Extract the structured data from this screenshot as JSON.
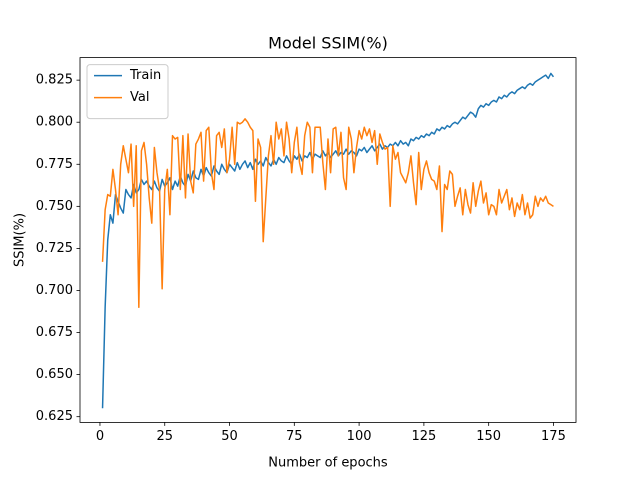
{
  "chart_data": {
    "type": "line",
    "title": "Model SSIM(%)",
    "x_label": "Number of epochs",
    "y_label": "SSIM(%)",
    "x": [
      1,
      2,
      3,
      4,
      5,
      6,
      7,
      8,
      9,
      10,
      11,
      12,
      13,
      14,
      15,
      16,
      17,
      18,
      19,
      20,
      21,
      22,
      23,
      24,
      25,
      26,
      27,
      28,
      29,
      30,
      31,
      32,
      33,
      34,
      35,
      36,
      37,
      38,
      39,
      40,
      41,
      42,
      43,
      44,
      45,
      46,
      47,
      48,
      49,
      50,
      51,
      52,
      53,
      54,
      55,
      56,
      57,
      58,
      59,
      60,
      61,
      62,
      63,
      64,
      65,
      66,
      67,
      68,
      69,
      70,
      71,
      72,
      73,
      74,
      75,
      76,
      77,
      78,
      79,
      80,
      81,
      82,
      83,
      84,
      85,
      86,
      87,
      88,
      89,
      90,
      91,
      92,
      93,
      94,
      95,
      96,
      97,
      98,
      99,
      100,
      101,
      102,
      103,
      104,
      105,
      106,
      107,
      108,
      109,
      110,
      111,
      112,
      113,
      114,
      115,
      116,
      117,
      118,
      119,
      120,
      121,
      122,
      123,
      124,
      125,
      126,
      127,
      128,
      129,
      130,
      131,
      132,
      133,
      134,
      135,
      136,
      137,
      138,
      139,
      140,
      141,
      142,
      143,
      144,
      145,
      146,
      147,
      148,
      149,
      150,
      151,
      152,
      153,
      154,
      155,
      156,
      157,
      158,
      159,
      160,
      161,
      162,
      163,
      164,
      165,
      166,
      167,
      168,
      169,
      170,
      171,
      172,
      173,
      174,
      175
    ],
    "series": [
      {
        "name": "Train",
        "color": "#1f77b4",
        "values": [
          0.63,
          0.69,
          0.73,
          0.745,
          0.74,
          0.757,
          0.753,
          0.749,
          0.746,
          0.76,
          0.757,
          0.755,
          0.763,
          0.758,
          0.76,
          0.766,
          0.763,
          0.765,
          0.762,
          0.76,
          0.765,
          0.761,
          0.759,
          0.766,
          0.762,
          0.764,
          0.767,
          0.76,
          0.765,
          0.762,
          0.768,
          0.764,
          0.762,
          0.769,
          0.765,
          0.771,
          0.767,
          0.766,
          0.772,
          0.768,
          0.773,
          0.77,
          0.768,
          0.774,
          0.771,
          0.769,
          0.775,
          0.772,
          0.77,
          0.775,
          0.773,
          0.771,
          0.776,
          0.772,
          0.775,
          0.777,
          0.773,
          0.776,
          0.772,
          0.778,
          0.775,
          0.777,
          0.774,
          0.779,
          0.776,
          0.774,
          0.778,
          0.775,
          0.779,
          0.777,
          0.776,
          0.78,
          0.777,
          0.775,
          0.78,
          0.778,
          0.781,
          0.777,
          0.78,
          0.779,
          0.782,
          0.778,
          0.781,
          0.78,
          0.779,
          0.783,
          0.78,
          0.782,
          0.779,
          0.781,
          0.783,
          0.78,
          0.782,
          0.781,
          0.784,
          0.781,
          0.783,
          0.782,
          0.78,
          0.784,
          0.783,
          0.785,
          0.782,
          0.784,
          0.786,
          0.783,
          0.785,
          0.787,
          0.784,
          0.786,
          0.785,
          0.787,
          0.786,
          0.788,
          0.786,
          0.789,
          0.787,
          0.788,
          0.786,
          0.79,
          0.789,
          0.791,
          0.79,
          0.792,
          0.791,
          0.793,
          0.792,
          0.794,
          0.793,
          0.796,
          0.795,
          0.797,
          0.796,
          0.798,
          0.797,
          0.799,
          0.8,
          0.799,
          0.801,
          0.803,
          0.802,
          0.804,
          0.806,
          0.805,
          0.803,
          0.808,
          0.81,
          0.809,
          0.811,
          0.81,
          0.812,
          0.813,
          0.812,
          0.815,
          0.814,
          0.816,
          0.815,
          0.817,
          0.818,
          0.817,
          0.819,
          0.82,
          0.821,
          0.82,
          0.822,
          0.823,
          0.822,
          0.824,
          0.825,
          0.826,
          0.827,
          0.828,
          0.826,
          0.829,
          0.827
        ]
      },
      {
        "name": "Val",
        "color": "#ff7f0e",
        "values": [
          0.717,
          0.748,
          0.757,
          0.756,
          0.772,
          0.76,
          0.745,
          0.775,
          0.786,
          0.778,
          0.77,
          0.787,
          0.75,
          0.786,
          0.69,
          0.783,
          0.788,
          0.775,
          0.755,
          0.74,
          0.785,
          0.77,
          0.76,
          0.701,
          0.76,
          0.772,
          0.745,
          0.792,
          0.79,
          0.791,
          0.76,
          0.792,
          0.755,
          0.793,
          0.765,
          0.758,
          0.787,
          0.79,
          0.794,
          0.765,
          0.795,
          0.797,
          0.77,
          0.76,
          0.792,
          0.794,
          0.785,
          0.796,
          0.77,
          0.778,
          0.797,
          0.775,
          0.8,
          0.799,
          0.8,
          0.802,
          0.8,
          0.797,
          0.795,
          0.753,
          0.79,
          0.785,
          0.729,
          0.755,
          0.78,
          0.792,
          0.775,
          0.8,
          0.79,
          0.796,
          0.78,
          0.8,
          0.79,
          0.77,
          0.788,
          0.797,
          0.776,
          0.769,
          0.792,
          0.8,
          0.797,
          0.77,
          0.797,
          0.797,
          0.797,
          0.776,
          0.76,
          0.79,
          0.77,
          0.796,
          0.797,
          0.78,
          0.794,
          0.767,
          0.76,
          0.797,
          0.79,
          0.77,
          0.785,
          0.795,
          0.79,
          0.797,
          0.792,
          0.796,
          0.788,
          0.795,
          0.775,
          0.793,
          0.788,
          0.784,
          0.785,
          0.75,
          0.786,
          0.778,
          0.782,
          0.77,
          0.767,
          0.764,
          0.77,
          0.78,
          0.764,
          0.751,
          0.782,
          0.76,
          0.772,
          0.777,
          0.77,
          0.766,
          0.765,
          0.76,
          0.774,
          0.735,
          0.763,
          0.76,
          0.771,
          0.769,
          0.75,
          0.756,
          0.761,
          0.745,
          0.76,
          0.751,
          0.746,
          0.764,
          0.75,
          0.759,
          0.765,
          0.752,
          0.758,
          0.745,
          0.751,
          0.75,
          0.745,
          0.76,
          0.752,
          0.756,
          0.76,
          0.748,
          0.755,
          0.744,
          0.752,
          0.748,
          0.757,
          0.745,
          0.752,
          0.743,
          0.745,
          0.756,
          0.75,
          0.755,
          0.753,
          0.756,
          0.752,
          0.751,
          0.75
        ]
      }
    ],
    "xlim": [
      -7.7,
      183.7
    ],
    "xticks": [
      0,
      25,
      50,
      75,
      100,
      125,
      150,
      175
    ],
    "ylim": [
      0.6216,
      0.8384
    ],
    "yticks": [
      0.625,
      {
        "value": 0.65,
        "label": "0.650"
      },
      0.675,
      {
        "value": 0.7,
        "label": "0.700"
      },
      0.725,
      {
        "value": 0.75,
        "label": "0.750"
      },
      0.775,
      {
        "value": 0.8,
        "label": "0.800"
      },
      0.825
    ],
    "legend": "upper left"
  }
}
